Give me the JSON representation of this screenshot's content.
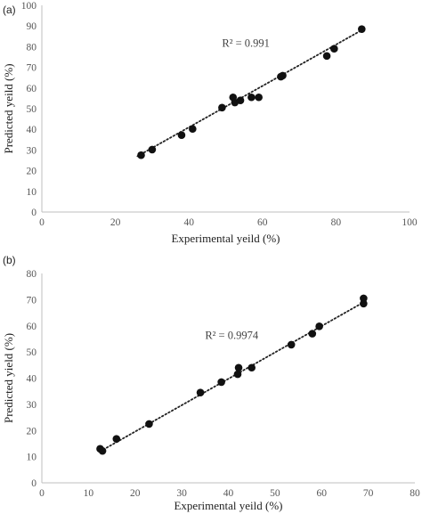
{
  "chart_data": [
    {
      "type": "scatter",
      "panel_label": "(a)",
      "xlabel": "Experimental yeild (%)",
      "ylabel": "Predicted yeild (%)",
      "xlim": [
        0,
        100
      ],
      "ylim": [
        0,
        100
      ],
      "xticks": [
        0,
        20,
        40,
        60,
        80,
        100
      ],
      "yticks": [
        0,
        10,
        20,
        30,
        40,
        50,
        60,
        70,
        80,
        90,
        100
      ],
      "annotation": "R² = 0.991",
      "annotation_at": [
        49,
        80
      ],
      "trendline": {
        "style": "dotted",
        "x": [
          26,
          87
        ],
        "y": [
          27,
          88
        ]
      },
      "points": [
        {
          "x": 27,
          "y": 27.5
        },
        {
          "x": 30,
          "y": 30.2
        },
        {
          "x": 38,
          "y": 37.2
        },
        {
          "x": 41,
          "y": 40.2
        },
        {
          "x": 49,
          "y": 50.5
        },
        {
          "x": 52,
          "y": 55.5
        },
        {
          "x": 52.5,
          "y": 53
        },
        {
          "x": 54,
          "y": 54
        },
        {
          "x": 57,
          "y": 55.5
        },
        {
          "x": 59,
          "y": 55.5
        },
        {
          "x": 65,
          "y": 65.5
        },
        {
          "x": 65.5,
          "y": 66
        },
        {
          "x": 77.5,
          "y": 75.5
        },
        {
          "x": 79.5,
          "y": 79
        },
        {
          "x": 87,
          "y": 88.5
        }
      ]
    },
    {
      "type": "scatter",
      "panel_label": "(b)",
      "xlabel": "Experimental yeild (%)",
      "ylabel": "Predicted yield (%)",
      "xlim": [
        0,
        80
      ],
      "ylim": [
        0,
        80
      ],
      "xticks": [
        0,
        10,
        20,
        30,
        40,
        50,
        60,
        70,
        80
      ],
      "yticks": [
        0,
        10,
        20,
        30,
        40,
        50,
        60,
        70,
        80
      ],
      "annotation": "R² = 0.9974",
      "annotation_at": [
        35,
        55
      ],
      "trendline": {
        "style": "dotted",
        "x": [
          12.5,
          69
        ],
        "y": [
          12,
          69
        ]
      },
      "points": [
        {
          "x": 12.5,
          "y": 13
        },
        {
          "x": 13,
          "y": 12.2
        },
        {
          "x": 16,
          "y": 16.8
        },
        {
          "x": 23,
          "y": 22.5
        },
        {
          "x": 34,
          "y": 34.5
        },
        {
          "x": 38.5,
          "y": 38.5
        },
        {
          "x": 42,
          "y": 41.5
        },
        {
          "x": 42.2,
          "y": 44
        },
        {
          "x": 45,
          "y": 44
        },
        {
          "x": 53.5,
          "y": 52.8
        },
        {
          "x": 58,
          "y": 57
        },
        {
          "x": 59.5,
          "y": 59.8
        },
        {
          "x": 69,
          "y": 68.5
        },
        {
          "x": 69,
          "y": 70.5
        }
      ]
    }
  ]
}
